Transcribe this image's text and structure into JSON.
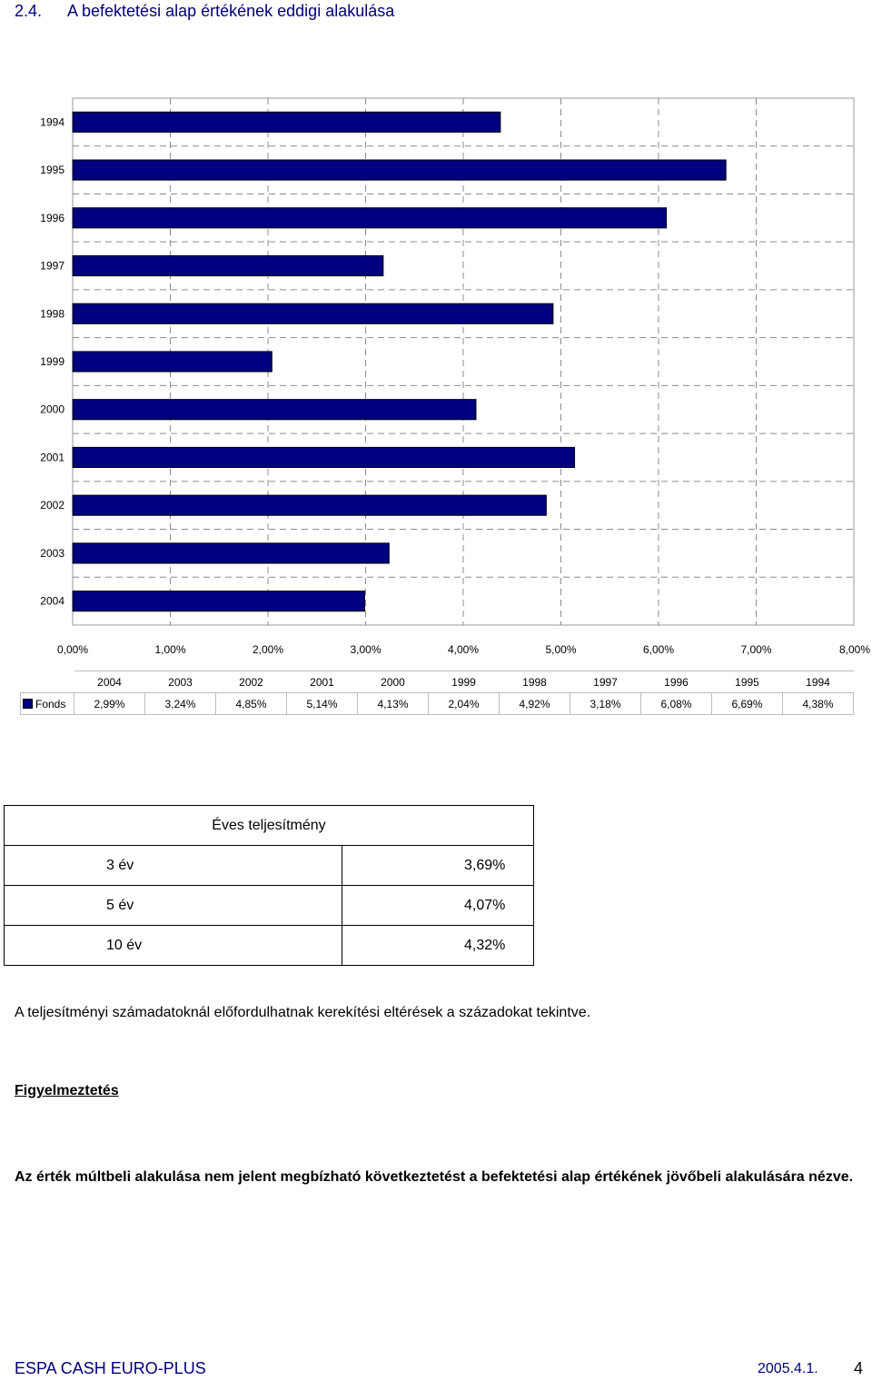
{
  "section": {
    "number": "2.4.",
    "title": "A befektetési alap értékének eddigi alakulása"
  },
  "chart_data": {
    "type": "bar",
    "orientation": "horizontal",
    "categories": [
      "1994",
      "1995",
      "1996",
      "1997",
      "1998",
      "1999",
      "2000",
      "2001",
      "2002",
      "2003",
      "2004"
    ],
    "series": [
      {
        "name": "Fonds",
        "values": [
          4.38,
          6.69,
          6.08,
          3.18,
          4.92,
          2.04,
          4.13,
          5.14,
          4.85,
          3.24,
          2.99
        ]
      }
    ],
    "xlim": [
      0,
      8
    ],
    "xticks": [
      "0,00%",
      "1,00%",
      "2,00%",
      "3,00%",
      "4,00%",
      "5,00%",
      "6,00%",
      "7,00%",
      "8,00%"
    ],
    "grid": "dashed",
    "bar_color": "#000080"
  },
  "data_table": {
    "years": [
      "2004",
      "2003",
      "2002",
      "2001",
      "2000",
      "1999",
      "1998",
      "1997",
      "1996",
      "1995",
      "1994"
    ],
    "series_label": "Fonds",
    "values": [
      "2,99%",
      "3,24%",
      "4,85%",
      "5,14%",
      "4,13%",
      "2,04%",
      "4,92%",
      "3,18%",
      "6,08%",
      "6,69%",
      "4,38%"
    ]
  },
  "performance": {
    "header": "Éves teljesítmény",
    "rows": [
      {
        "period": "3 év",
        "value": "3,69%"
      },
      {
        "period": "5 év",
        "value": "4,07%"
      },
      {
        "period": "10 év",
        "value": "4,32%"
      }
    ]
  },
  "note": "A teljesítményi számadatoknál előfordulhatnak kerekítési eltérések a századokat tekintve.",
  "warning": {
    "title": "Figyelmeztetés",
    "text": "Az érték múltbeli alakulása nem jelent megbízható következtetést a befektetési alap értékének jövőbeli alakulására nézve."
  },
  "footer": {
    "fund": "ESPA CASH EURO-PLUS",
    "date": "2005.4.1.",
    "page": "4"
  }
}
